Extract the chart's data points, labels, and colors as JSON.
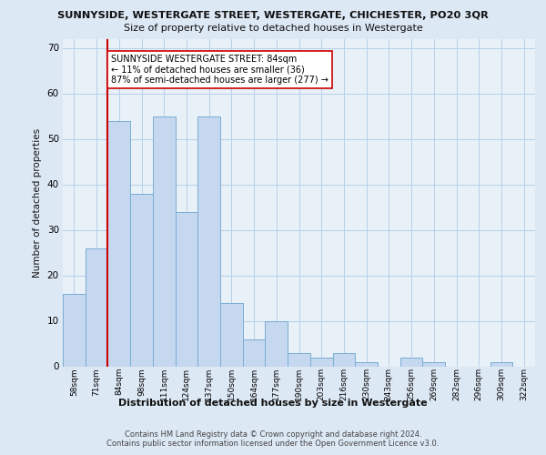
{
  "title1": "SUNNYSIDE, WESTERGATE STREET, WESTERGATE, CHICHESTER, PO20 3QR",
  "title2": "Size of property relative to detached houses in Westergate",
  "xlabel": "Distribution of detached houses by size in Westergate",
  "ylabel": "Number of detached properties",
  "categories": [
    "58sqm",
    "71sqm",
    "84sqm",
    "98sqm",
    "111sqm",
    "124sqm",
    "137sqm",
    "150sqm",
    "164sqm",
    "177sqm",
    "190sqm",
    "203sqm",
    "216sqm",
    "230sqm",
    "243sqm",
    "256sqm",
    "269sqm",
    "282sqm",
    "296sqm",
    "309sqm",
    "322sqm"
  ],
  "values": [
    16,
    26,
    54,
    38,
    55,
    34,
    55,
    14,
    6,
    10,
    3,
    2,
    3,
    1,
    0,
    2,
    1,
    0,
    0,
    1,
    0
  ],
  "bar_color": "#c5d8f0",
  "bar_edge_color": "#7aadd4",
  "vline_color": "#cc0000",
  "annotation_text": "SUNNYSIDE WESTERGATE STREET: 84sqm\n← 11% of detached houses are smaller (36)\n87% of semi-detached houses are larger (277) →",
  "annotation_box_color": "#ffffff",
  "annotation_box_edge": "#cc0000",
  "ylim": [
    0,
    72
  ],
  "yticks": [
    0,
    10,
    20,
    30,
    40,
    50,
    60,
    70
  ],
  "footer1": "Contains HM Land Registry data © Crown copyright and database right 2024.",
  "footer2": "Contains public sector information licensed under the Open Government Licence v3.0.",
  "bg_color": "#dde8f5",
  "plot_bg_color": "#e8f0f8",
  "grid_color": "#b8cfe8"
}
